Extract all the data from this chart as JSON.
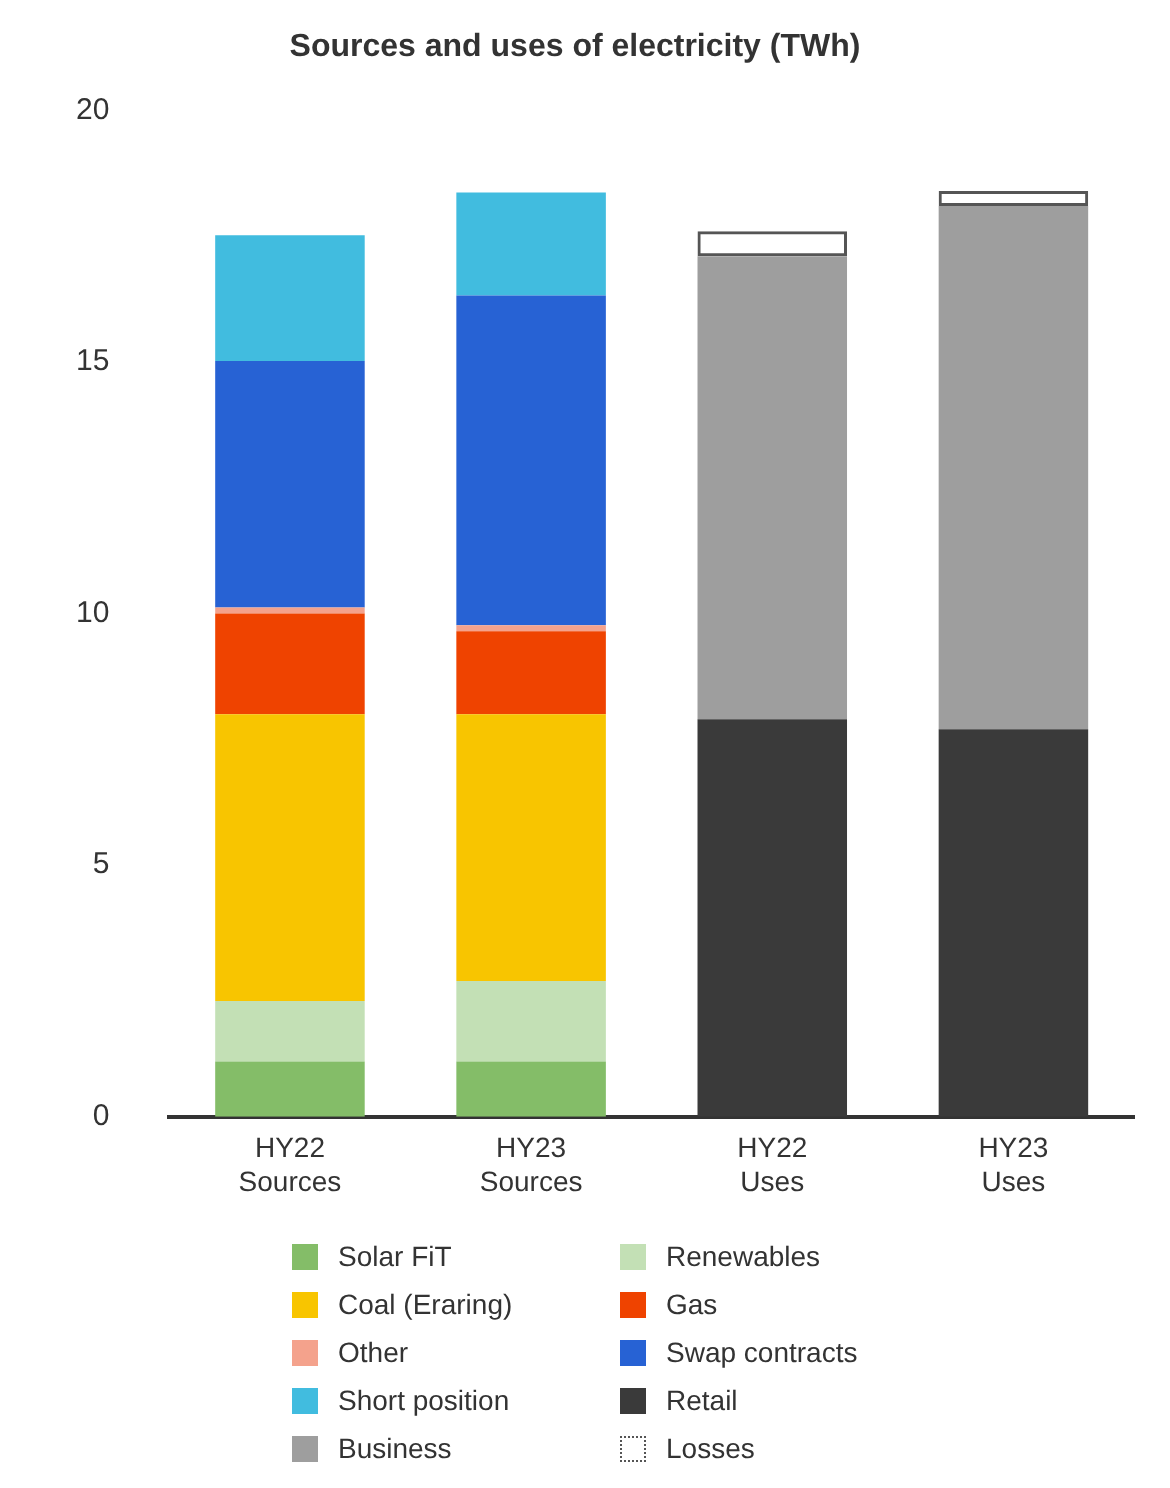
{
  "chart_data": {
    "type": "bar",
    "title": "Sources and uses of electricity (TWh)",
    "categories": [
      "HY22 Sources",
      "HY23 Sources",
      "HY22 Uses",
      "HY23 Uses"
    ],
    "stacked": true,
    "ylim": [
      0,
      20
    ],
    "yticks": [
      0,
      5,
      10,
      15,
      20
    ],
    "grid": false,
    "legend": "bottom",
    "series": [
      {
        "name": "Solar FiT",
        "color": "#84bd68",
        "values": [
          1.1,
          1.1,
          null,
          null
        ]
      },
      {
        "name": "Renewables",
        "color": "#c3e0b5",
        "values": [
          1.2,
          1.6,
          null,
          null
        ]
      },
      {
        "name": "Coal (Eraring)",
        "color": "#f8c500",
        "values": [
          5.7,
          5.3,
          null,
          null
        ]
      },
      {
        "name": "Gas",
        "color": "#ef4300",
        "values": [
          2.0,
          1.65,
          null,
          null
        ]
      },
      {
        "name": "Other",
        "color": "#f4a28c",
        "values": [
          0.12,
          0.12,
          null,
          null
        ]
      },
      {
        "name": "Swap contracts",
        "color": "#2762d4",
        "values": [
          4.9,
          6.55,
          null,
          null
        ]
      },
      {
        "name": "Short position",
        "color": "#41bcdf",
        "values": [
          2.5,
          2.05,
          null,
          null
        ]
      },
      {
        "name": "Retail",
        "color": "#3a3a3a",
        "values": [
          null,
          null,
          7.9,
          7.7
        ]
      },
      {
        "name": "Business",
        "color": "#9e9e9e",
        "values": [
          null,
          null,
          9.2,
          10.4
        ]
      },
      {
        "name": "Losses",
        "color": "#555555",
        "line_style": "dotted",
        "values": [
          null,
          null,
          0.5,
          0.3
        ]
      }
    ]
  }
}
